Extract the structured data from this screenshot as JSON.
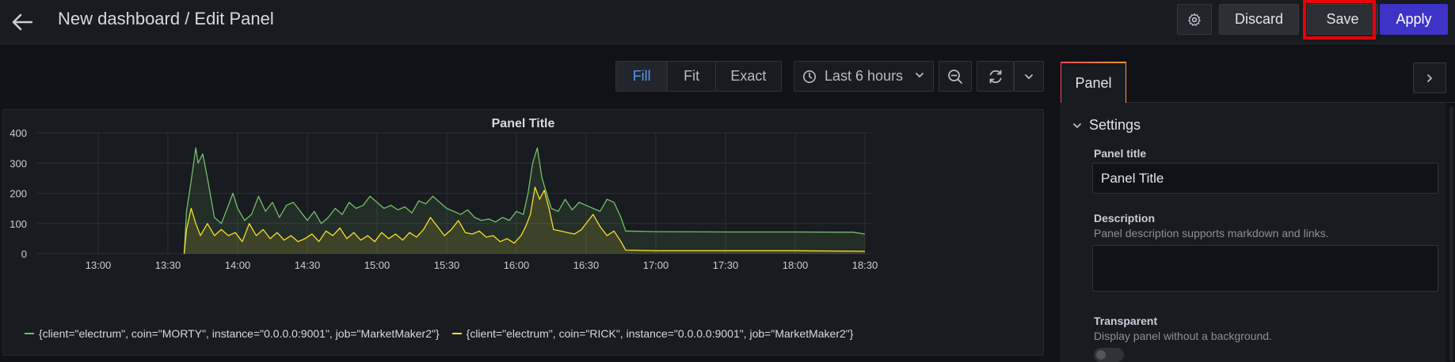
{
  "header": {
    "title": "New dashboard / Edit Panel",
    "discard_label": "Discard",
    "save_label": "Save",
    "apply_label": "Apply"
  },
  "toolbar": {
    "modes": [
      "Fill",
      "Fit",
      "Exact"
    ],
    "active_mode": "Fill",
    "time_range": "Last 6 hours"
  },
  "panel": {
    "title": "Panel Title"
  },
  "chart_data": {
    "type": "area",
    "title": "Panel Title",
    "x": [
      "13:00",
      "13:30",
      "14:00",
      "14:30",
      "15:00",
      "15:30",
      "16:00",
      "16:30",
      "17:00",
      "17:30",
      "18:00",
      "18:30"
    ],
    "ylim": [
      0,
      400
    ],
    "yticks": [
      0,
      100,
      200,
      300,
      400
    ],
    "grid": true,
    "legend_position": "bottom",
    "series": [
      {
        "name": "{client=\"electrum\", coin=\"MORTY\", instance=\"0.0.0.0:9001\", job=\"MarketMaker2\"}",
        "color": "#73bf69",
        "points": [
          [
            "13:37",
            0
          ],
          [
            "13:38",
            140
          ],
          [
            "13:40",
            240
          ],
          [
            "13:42",
            350
          ],
          [
            "13:43",
            300
          ],
          [
            "13:45",
            330
          ],
          [
            "13:47",
            250
          ],
          [
            "13:50",
            120
          ],
          [
            "13:53",
            100
          ],
          [
            "13:56",
            160
          ],
          [
            "13:58",
            200
          ],
          [
            "14:00",
            150
          ],
          [
            "14:03",
            110
          ],
          [
            "14:06",
            130
          ],
          [
            "14:09",
            190
          ],
          [
            "14:12",
            140
          ],
          [
            "14:15",
            170
          ],
          [
            "14:18",
            120
          ],
          [
            "14:21",
            160
          ],
          [
            "14:24",
            170
          ],
          [
            "14:27",
            140
          ],
          [
            "14:30",
            110
          ],
          [
            "14:33",
            140
          ],
          [
            "14:36",
            100
          ],
          [
            "14:39",
            120
          ],
          [
            "14:42",
            150
          ],
          [
            "14:45",
            130
          ],
          [
            "14:48",
            170
          ],
          [
            "14:51",
            150
          ],
          [
            "14:54",
            160
          ],
          [
            "14:57",
            190
          ],
          [
            "15:00",
            170
          ],
          [
            "15:03",
            150
          ],
          [
            "15:06",
            160
          ],
          [
            "15:09",
            145
          ],
          [
            "15:12",
            155
          ],
          [
            "15:15",
            135
          ],
          [
            "15:18",
            175
          ],
          [
            "15:21",
            165
          ],
          [
            "15:24",
            190
          ],
          [
            "15:27",
            170
          ],
          [
            "15:30",
            150
          ],
          [
            "15:33",
            140
          ],
          [
            "15:36",
            130
          ],
          [
            "15:39",
            145
          ],
          [
            "15:42",
            120
          ],
          [
            "15:45",
            110
          ],
          [
            "15:48",
            115
          ],
          [
            "15:51",
            105
          ],
          [
            "15:54",
            120
          ],
          [
            "15:57",
            110
          ],
          [
            "16:00",
            140
          ],
          [
            "16:03",
            130
          ],
          [
            "16:05",
            200
          ],
          [
            "16:07",
            300
          ],
          [
            "16:09",
            350
          ],
          [
            "16:11",
            250
          ],
          [
            "16:13",
            200
          ],
          [
            "16:15",
            150
          ],
          [
            "16:18",
            140
          ],
          [
            "16:21",
            180
          ],
          [
            "16:24",
            145
          ],
          [
            "16:27",
            170
          ],
          [
            "16:30",
            160
          ],
          [
            "16:33",
            150
          ],
          [
            "16:36",
            140
          ],
          [
            "16:39",
            180
          ],
          [
            "16:42",
            170
          ],
          [
            "16:45",
            120
          ],
          [
            "16:47",
            75
          ],
          [
            "17:00",
            73
          ],
          [
            "17:30",
            72
          ],
          [
            "18:00",
            72
          ],
          [
            "18:25",
            71
          ],
          [
            "18:30",
            65
          ]
        ]
      },
      {
        "name": "{client=\"electrum\", coin=\"RICK\", instance=\"0.0.0.0:9001\", job=\"MarketMaker2\"}",
        "color": "#fade2a",
        "points": [
          [
            "13:37",
            0
          ],
          [
            "13:38",
            80
          ],
          [
            "13:40",
            150
          ],
          [
            "13:42",
            100
          ],
          [
            "13:44",
            60
          ],
          [
            "13:47",
            100
          ],
          [
            "13:50",
            60
          ],
          [
            "13:53",
            80
          ],
          [
            "13:56",
            60
          ],
          [
            "13:59",
            70
          ],
          [
            "14:02",
            40
          ],
          [
            "14:05",
            100
          ],
          [
            "14:08",
            60
          ],
          [
            "14:11",
            80
          ],
          [
            "14:14",
            50
          ],
          [
            "14:17",
            70
          ],
          [
            "14:20",
            45
          ],
          [
            "14:23",
            60
          ],
          [
            "14:26",
            40
          ],
          [
            "14:29",
            50
          ],
          [
            "14:32",
            65
          ],
          [
            "14:35",
            40
          ],
          [
            "14:38",
            75
          ],
          [
            "14:41",
            60
          ],
          [
            "14:44",
            85
          ],
          [
            "14:47",
            50
          ],
          [
            "14:50",
            70
          ],
          [
            "14:53",
            45
          ],
          [
            "14:56",
            60
          ],
          [
            "14:59",
            40
          ],
          [
            "15:02",
            70
          ],
          [
            "15:05",
            50
          ],
          [
            "15:08",
            65
          ],
          [
            "15:11",
            45
          ],
          [
            "15:14",
            70
          ],
          [
            "15:17",
            55
          ],
          [
            "15:20",
            80
          ],
          [
            "15:23",
            120
          ],
          [
            "15:26",
            90
          ],
          [
            "15:29",
            60
          ],
          [
            "15:32",
            80
          ],
          [
            "15:35",
            110
          ],
          [
            "15:38",
            70
          ],
          [
            "15:41",
            65
          ],
          [
            "15:44",
            75
          ],
          [
            "15:47",
            55
          ],
          [
            "15:50",
            60
          ],
          [
            "15:53",
            40
          ],
          [
            "15:56",
            50
          ],
          [
            "15:59",
            35
          ],
          [
            "16:02",
            60
          ],
          [
            "16:04",
            90
          ],
          [
            "16:06",
            130
          ],
          [
            "16:08",
            220
          ],
          [
            "16:10",
            180
          ],
          [
            "16:12",
            210
          ],
          [
            "16:14",
            150
          ],
          [
            "16:16",
            80
          ],
          [
            "16:19",
            75
          ],
          [
            "16:22",
            70
          ],
          [
            "16:25",
            65
          ],
          [
            "16:28",
            80
          ],
          [
            "16:31",
            110
          ],
          [
            "16:33",
            130
          ],
          [
            "16:36",
            90
          ],
          [
            "16:39",
            60
          ],
          [
            "16:42",
            75
          ],
          [
            "16:45",
            40
          ],
          [
            "16:47",
            12
          ],
          [
            "17:00",
            10
          ],
          [
            "17:30",
            10
          ],
          [
            "18:00",
            10
          ],
          [
            "18:30",
            8
          ]
        ]
      }
    ]
  },
  "options": {
    "tab_label": "Panel",
    "section_title": "Settings",
    "title_label": "Panel title",
    "title_value": "Panel Title",
    "description_label": "Description",
    "description_help": "Panel description supports markdown and links.",
    "transparent_label": "Transparent",
    "transparent_help": "Display panel without a background."
  },
  "icons": {
    "back": "arrow-left-icon",
    "settings": "gear-icon",
    "clock": "clock-icon",
    "zoom_out": "zoom-out-icon",
    "refresh": "refresh-icon",
    "chevron": "chevron-down-icon",
    "collapse": "chevron-right-icon"
  }
}
